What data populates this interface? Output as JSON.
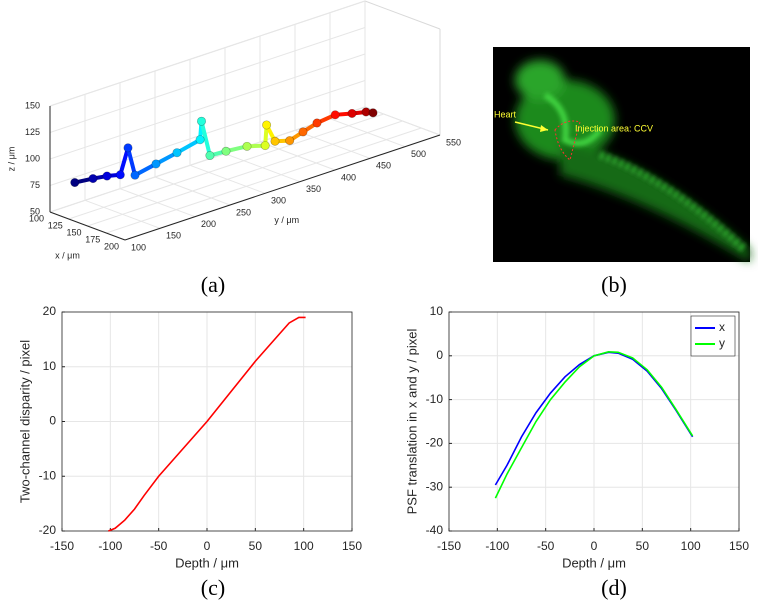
{
  "chart_data": [
    {
      "type": "scatter3d",
      "label": "(a)",
      "xlabel": "x / μm",
      "ylabel": "y / μm",
      "zlabel": "z / μm",
      "xlim": [
        100,
        200
      ],
      "xticks": [
        100,
        125,
        150,
        175,
        200
      ],
      "ylim": [
        100,
        550
      ],
      "yticks": [
        100,
        150,
        200,
        250,
        300,
        350,
        400,
        450,
        500,
        550
      ],
      "zlim": [
        50,
        150
      ],
      "zticks": [
        50,
        75,
        100,
        125,
        150
      ],
      "grid": true,
      "colormap": "jet",
      "x": [
        120,
        120,
        120,
        120,
        120,
        120,
        120,
        120,
        120,
        120,
        120,
        120,
        120,
        120,
        120,
        120,
        120,
        120,
        120,
        120,
        120,
        120,
        120
      ],
      "y": [
        114,
        140,
        160,
        179,
        190,
        200,
        230,
        260,
        293,
        295,
        307,
        330,
        360,
        386,
        388,
        400,
        421,
        440,
        460,
        486,
        510,
        530,
        540
      ],
      "z": [
        80,
        78,
        76,
        73,
        96,
        68,
        72,
        76,
        81,
        98,
        63,
        62,
        60,
        55,
        74,
        56,
        52,
        56,
        60,
        62,
        58,
        55,
        52
      ]
    },
    {
      "type": "image",
      "label": "(b)",
      "annotations": [
        {
          "text": "Heart",
          "color": "#ffff33"
        },
        {
          "text": "Injection area: CCV",
          "color": "#ffff33"
        }
      ]
    },
    {
      "type": "line",
      "label": "(c)",
      "xlabel": "Depth / μm",
      "ylabel": "Two-channel disparity / pixel",
      "xlim": [
        -150,
        150
      ],
      "xticks": [
        -150,
        -100,
        -50,
        0,
        50,
        100,
        150
      ],
      "ylim": [
        -20,
        20
      ],
      "yticks": [
        -20,
        -10,
        0,
        10,
        20
      ],
      "grid": true,
      "x": [
        -102,
        -95,
        -85,
        -75,
        -65,
        -50,
        -25,
        0,
        25,
        50,
        75,
        85,
        95,
        102
      ],
      "series": [
        {
          "color": "#ff0000",
          "values": [
            -20,
            -19.5,
            -18,
            -16,
            -13.5,
            -10,
            -5,
            0,
            5.5,
            11,
            16,
            18,
            19,
            19
          ]
        }
      ]
    },
    {
      "type": "line",
      "label": "(d)",
      "xlabel": "Depth / μm",
      "ylabel": "PSF translation in x and y / pixel",
      "xlim": [
        -150,
        150
      ],
      "xticks": [
        -150,
        -100,
        -50,
        0,
        50,
        100,
        150
      ],
      "ylim": [
        -40,
        10
      ],
      "yticks": [
        -40,
        -30,
        -20,
        -10,
        0,
        10
      ],
      "grid": true,
      "legend": "top-right",
      "x": [
        -102,
        -90,
        -75,
        -60,
        -45,
        -30,
        -15,
        0,
        15,
        25,
        40,
        55,
        70,
        85,
        102
      ],
      "series": [
        {
          "name": "x",
          "color": "#0000ff",
          "values": [
            -29.5,
            -25,
            -18.5,
            -13,
            -8.5,
            -4.8,
            -2,
            0,
            0.8,
            0.6,
            -0.8,
            -3.5,
            -7.5,
            -12.5,
            -18.5
          ]
        },
        {
          "name": "y",
          "color": "#00ff00",
          "values": [
            -32.5,
            -27,
            -21,
            -15,
            -10,
            -6,
            -2.5,
            0,
            0.9,
            0.8,
            -0.5,
            -3.2,
            -7.2,
            -12.3,
            -18.3
          ]
        }
      ]
    }
  ]
}
